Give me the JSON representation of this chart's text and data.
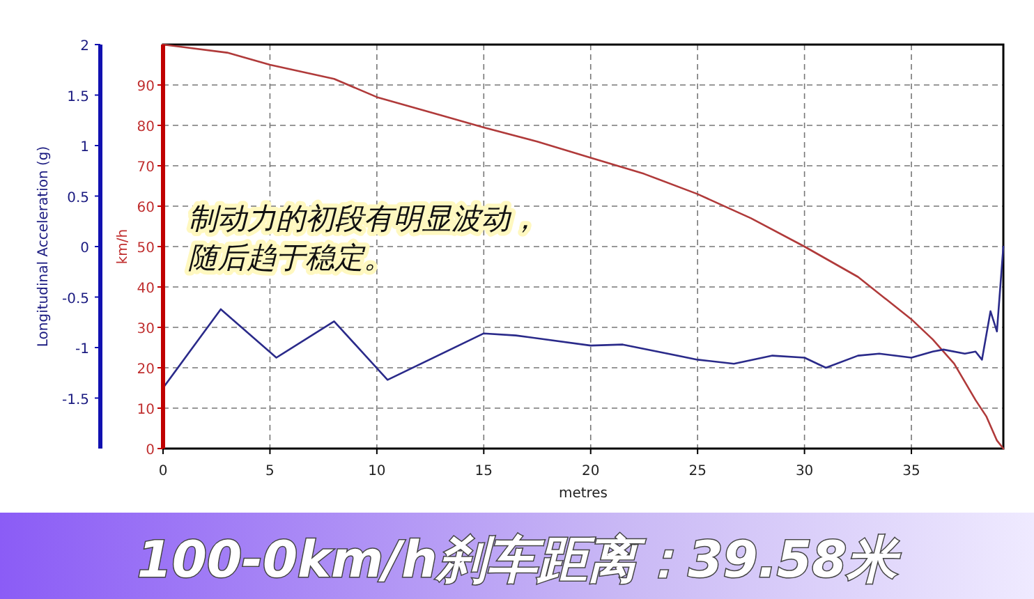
{
  "chart_data": {
    "type": "line",
    "title": "100-0km/h刹车距离：39.58米",
    "xlabel": "metres",
    "ylabel": "km/h",
    "y2label": "Longitudinal Acceleration (g)",
    "annotations": [
      "制动力的初段有明显波动，",
      "随后趋于稳定。"
    ],
    "series": [
      {
        "color": "#b03a3a",
        "x": [
          0,
          3,
          5,
          8,
          10,
          13,
          15,
          17.5,
          20,
          22.5,
          25,
          27.5,
          30,
          32.5,
          35,
          36,
          37,
          38,
          38.5,
          39,
          39.3
        ],
        "values": [
          100,
          98,
          95,
          91.5,
          87,
          82.5,
          79.5,
          76,
          72,
          68,
          63,
          57,
          50,
          42.5,
          32,
          27,
          21,
          12,
          8,
          2,
          0
        ]
      },
      {
        "color": "#2a2a8a",
        "axis": "y2",
        "x": [
          0,
          2.7,
          5.3,
          8,
          10.5,
          15,
          16.5,
          20,
          21.5,
          25,
          26.7,
          28.5,
          30,
          31,
          32.5,
          33.5,
          35,
          36,
          36.5,
          37.5,
          38,
          38.3,
          38.7,
          39,
          39.3
        ],
        "values": [
          -1.4,
          -0.62,
          -1.1,
          -0.74,
          -1.32,
          -0.86,
          -0.88,
          -0.98,
          -0.97,
          -1.12,
          -1.16,
          -1.08,
          -1.1,
          -1.2,
          -1.08,
          -1.06,
          -1.1,
          -1.04,
          -1.02,
          -1.06,
          -1.04,
          -1.12,
          -0.64,
          -0.84,
          0
        ]
      }
    ],
    "xlim": [
      0,
      39.3
    ],
    "xticks": [
      0,
      5,
      10,
      15,
      20,
      25,
      30,
      35
    ],
    "ylim": [
      0,
      100
    ],
    "yticks": [
      0,
      10,
      20,
      30,
      40,
      50,
      60,
      70,
      80,
      90
    ],
    "y2lim": [
      -2,
      2
    ],
    "y2ticks": [
      -1.5,
      -1,
      -0.5,
      0,
      0.5,
      1,
      1.5,
      2
    ],
    "grid": true
  }
}
